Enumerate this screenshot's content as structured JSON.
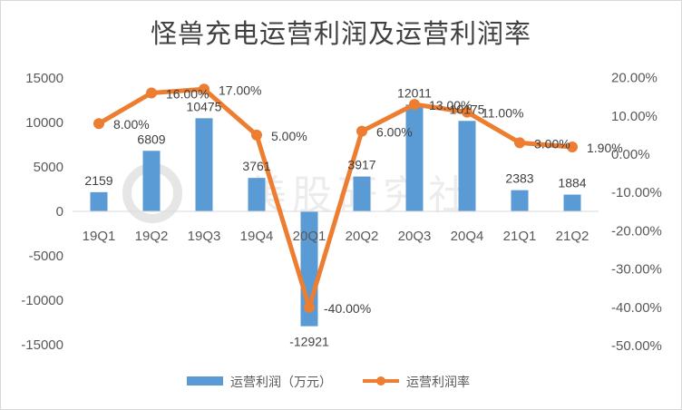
{
  "chart_data": {
    "type": "bar+line",
    "title": "怪兽充电运营利润及运营利润率",
    "categories": [
      "19Q1",
      "19Q2",
      "19Q3",
      "19Q4",
      "20Q1",
      "20Q2",
      "20Q3",
      "20Q4",
      "21Q1",
      "21Q2"
    ],
    "series": [
      {
        "name": "运营利润（万元）",
        "type": "bar",
        "axis": "left",
        "color": "#5b9bd5",
        "values": [
          2159,
          6809,
          10475,
          3761,
          -12921,
          3917,
          12011,
          10175,
          2383,
          1884
        ]
      },
      {
        "name": "运营利润率",
        "type": "line",
        "axis": "right",
        "color": "#ed7d31",
        "values": [
          8.0,
          16.0,
          17.0,
          5.0,
          -40.0,
          6.0,
          13.0,
          11.0,
          3.0,
          1.9
        ],
        "labels": [
          "8.00%",
          "16.00%",
          "17.00%",
          "5.00%",
          "-40.00%",
          "6.00%",
          "13.00%",
          "11.00%",
          "3.00%",
          "1.90%"
        ]
      }
    ],
    "left_axis": {
      "ylim": [
        -15000,
        15000
      ],
      "ticks": [
        "15000",
        "10000",
        "5000",
        "0",
        "-5000",
        "-10000",
        "-15000"
      ]
    },
    "right_axis": {
      "ylim": [
        -50,
        20
      ],
      "ticks": [
        "20.00%",
        "10.00%",
        "0.00%",
        "-10.00%",
        "-20.00%",
        "-30.00%",
        "-40.00%",
        "-50.00%"
      ]
    },
    "legend_position": "bottom",
    "grid": false,
    "watermark": "美股研究社"
  }
}
